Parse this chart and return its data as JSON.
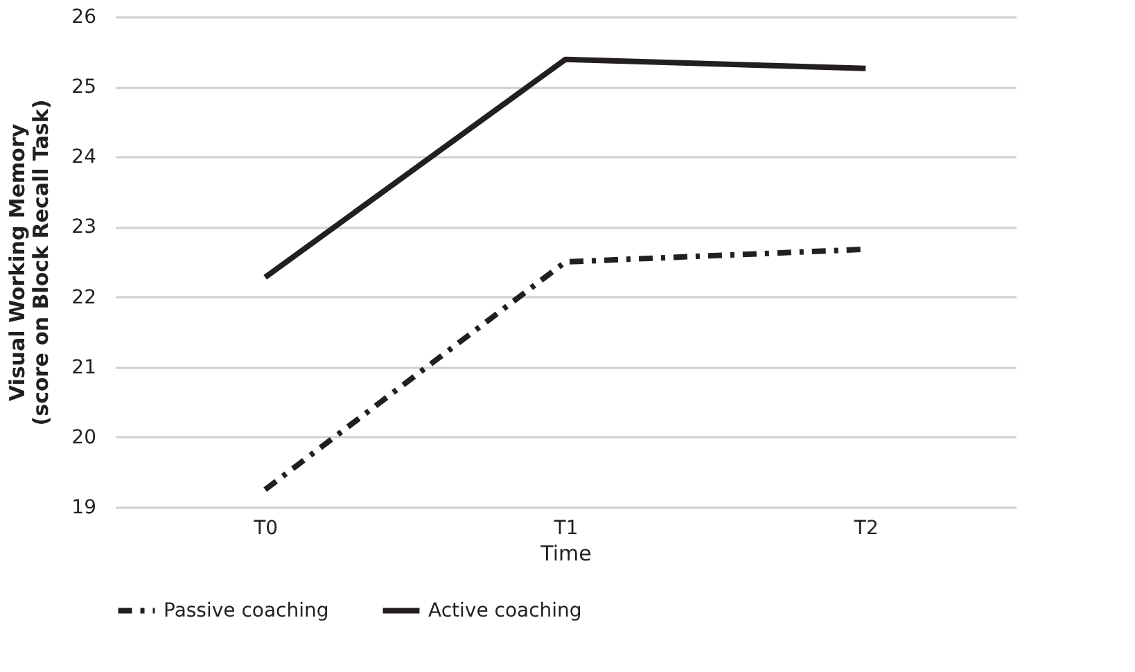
{
  "chart_data": {
    "type": "line",
    "xlabel": "Time",
    "ylabel": "Visual  Working Memory\n(score on Block Recall Task)",
    "categories": [
      "T0",
      "T1",
      "T2"
    ],
    "series": [
      {
        "name": "Passive coaching",
        "color": "#231f20",
        "line_style": "dashed",
        "values": [
          19.25,
          22.5,
          22.68
        ]
      },
      {
        "name": "Active coaching",
        "color": "#231f20",
        "line_style": "solid",
        "values": [
          22.28,
          25.39,
          25.26
        ]
      }
    ],
    "ylim": [
      19,
      26
    ],
    "yticks": [
      19,
      20,
      21,
      22,
      23,
      24,
      25,
      26
    ],
    "grid": "y",
    "legend": "bottom",
    "marker": "none"
  }
}
